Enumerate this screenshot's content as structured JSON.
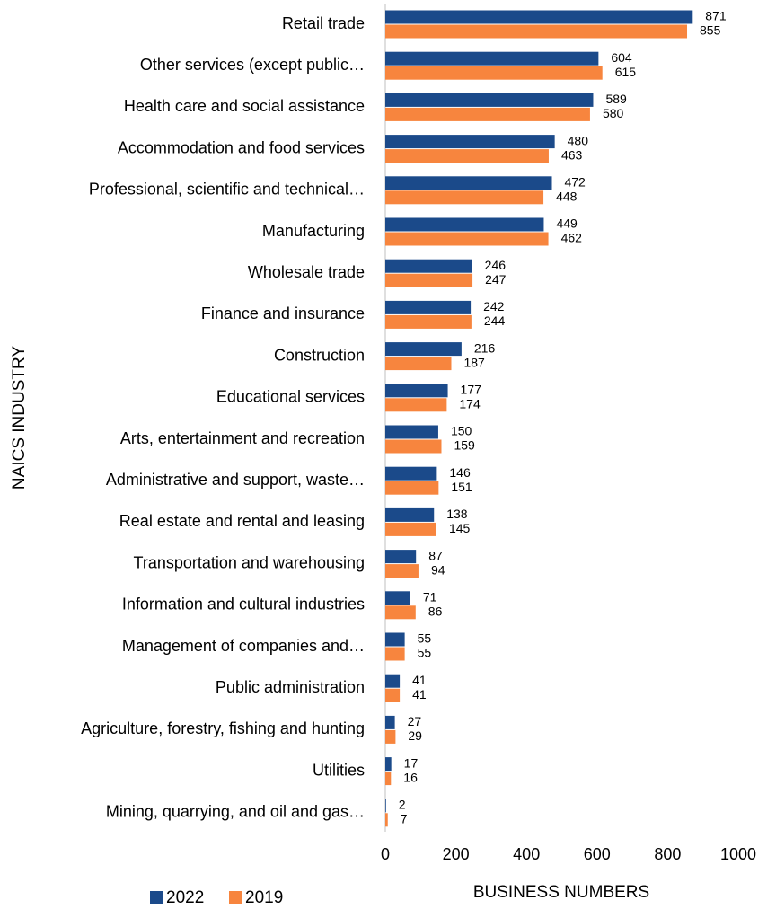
{
  "chart_data": {
    "type": "bar",
    "orientation": "horizontal",
    "xlabel": "BUSINESS NUMBERS",
    "ylabel": "NAICS INDUSTRY",
    "categories": [
      "Retail trade",
      "Other services (except public…",
      "Health care and social assistance",
      "Accommodation and food services",
      "Professional, scientific and technical…",
      "Manufacturing",
      "Wholesale trade",
      "Finance and insurance",
      "Construction",
      "Educational services",
      "Arts, entertainment and recreation",
      "Administrative and support, waste…",
      "Real estate and rental and leasing",
      "Transportation and warehousing",
      "Information and cultural industries",
      "Management of companies and…",
      "Public administration",
      "Agriculture, forestry, fishing and hunting",
      "Utilities",
      "Mining, quarrying, and oil and gas…"
    ],
    "series": [
      {
        "name": "2022",
        "color": "#1b4a8a",
        "values": [
          871,
          604,
          589,
          480,
          472,
          449,
          246,
          242,
          216,
          177,
          150,
          146,
          138,
          87,
          71,
          55,
          41,
          27,
          17,
          2
        ]
      },
      {
        "name": "2019",
        "color": "#f7853e",
        "values": [
          855,
          615,
          580,
          463,
          448,
          462,
          247,
          244,
          187,
          174,
          159,
          151,
          145,
          94,
          86,
          55,
          41,
          29,
          16,
          7
        ]
      }
    ],
    "xlim": [
      0,
      1000
    ],
    "xticks": [
      0,
      200,
      400,
      600,
      800,
      1000
    ],
    "legend": "bottom-left"
  }
}
